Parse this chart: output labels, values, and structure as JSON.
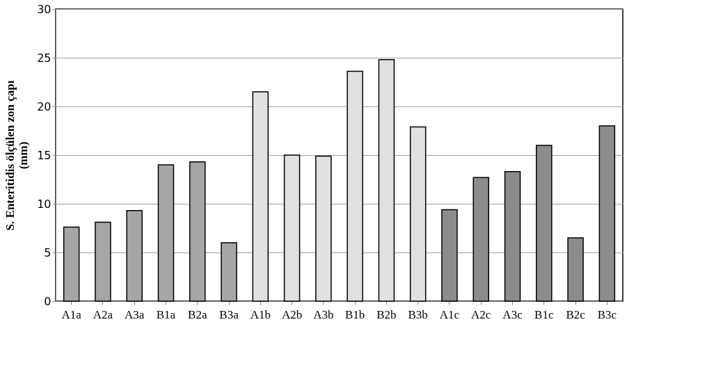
{
  "chart_data": {
    "type": "bar",
    "ylabel": "S. Enteritidis ölçülen zon çapı (mm)",
    "categories": [
      "A1a",
      "A2a",
      "A3a",
      "B1a",
      "B2a",
      "B3a",
      "A1b",
      "A2b",
      "A3b",
      "B1b",
      "B2b",
      "B3b",
      "A1c",
      "A2c",
      "A3c",
      "B1c",
      "B2c",
      "B3c"
    ],
    "values": [
      7.6,
      8.1,
      9.3,
      14.0,
      14.3,
      6.0,
      21.5,
      15.0,
      14.9,
      23.6,
      24.8,
      17.9,
      9.4,
      12.7,
      13.3,
      16.0,
      6.5,
      18.0
    ],
    "colors": [
      "#a6a6a6",
      "#a6a6a6",
      "#a6a6a6",
      "#a6a6a6",
      "#a6a6a6",
      "#a6a6a6",
      "#e0e0e0",
      "#e0e0e0",
      "#e0e0e0",
      "#e0e0e0",
      "#e0e0e0",
      "#e0e0e0",
      "#8c8c8c",
      "#8c8c8c",
      "#8c8c8c",
      "#8c8c8c",
      "#8c8c8c",
      "#8c8c8c"
    ],
    "ylim": [
      0,
      30
    ],
    "yticks": [
      0,
      5,
      10,
      15,
      20,
      25,
      30
    ],
    "grid": "y",
    "legend": false
  }
}
